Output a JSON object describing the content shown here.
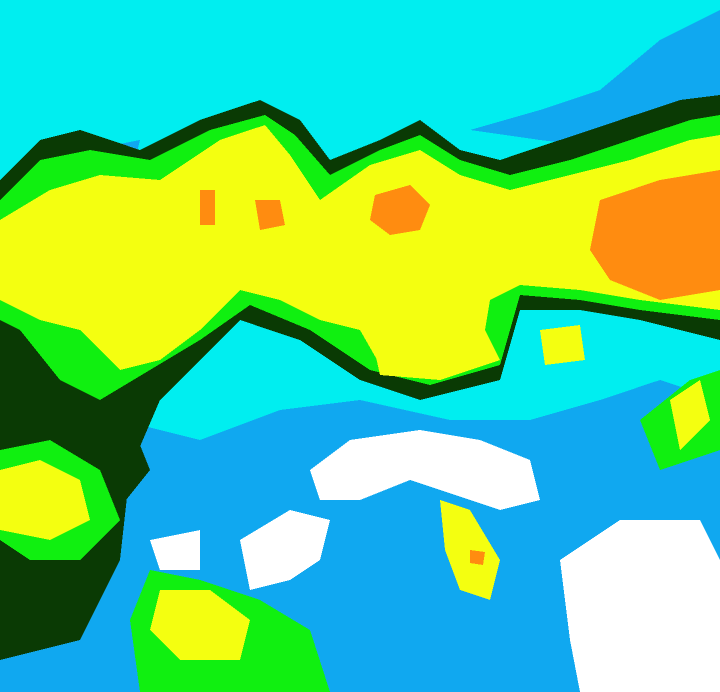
{
  "map": {
    "palette": {
      "cyan": "#00eef0",
      "light_blue": "#10a8f0",
      "white": "#ffffff",
      "yellow": "#f4ff10",
      "green": "#10f010",
      "dark_green": "#0a3a04",
      "orange": "#ff8c10"
    }
  }
}
